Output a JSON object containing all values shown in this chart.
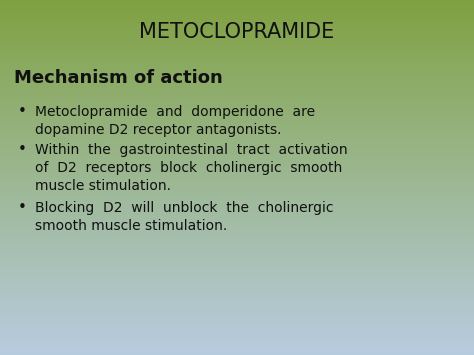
{
  "title": "METOCLOPRAMIDE",
  "subtitle": "Mechanism of action",
  "bullet1_line1": "Metoclopramide  and  domperidone  are",
  "bullet1_line2": "dopamine D2 receptor antagonists.",
  "bullet2_line1": "Within  the  gastrointestinal  tract  activation",
  "bullet2_line2": "of  D2  receptors  block  cholinergic  smooth",
  "bullet2_line3": "muscle stimulation.",
  "bullet3_line1": "Blocking  D2  will  unblock  the  cholinergic",
  "bullet3_line2": "smooth muscle stimulation.",
  "bg_top_color": "#80a040",
  "bg_mid_color": "#8aaa60",
  "bg_bottom_color": "#b8cce0",
  "title_fontsize": 15,
  "subtitle_fontsize": 13,
  "body_fontsize": 10,
  "title_color": "#111111",
  "text_color": "#111111"
}
